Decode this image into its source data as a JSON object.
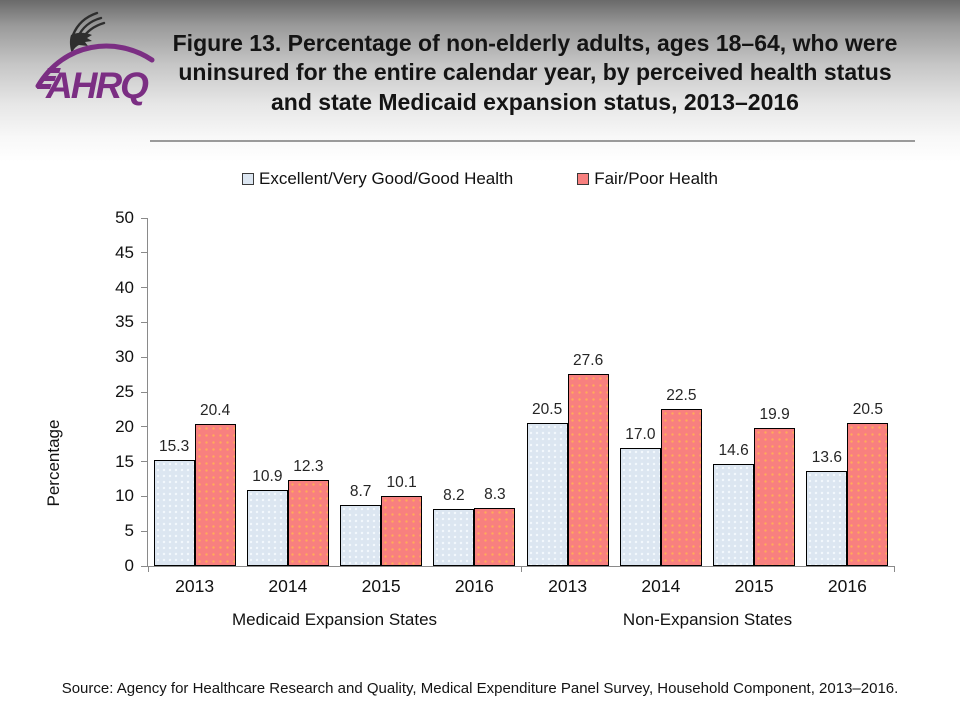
{
  "header": {
    "logo": {
      "org": "AHRQ",
      "eagle_icon": "hhs-eagle-icon",
      "accent_purple": "#7b2e83"
    },
    "title": "Figure 13. Percentage of non-elderly adults, ages 18–64, who were uninsured for the entire calendar year, by perceived health status and state Medicaid expansion status, 2013–2016"
  },
  "chart_data": {
    "type": "bar",
    "title": "Figure 13. Percentage of non-elderly adults, ages 18–64, who were uninsured for the entire calendar year, by perceived health status and state Medicaid expansion status, 2013–2016",
    "ylabel": "Percentage",
    "xlabel": "",
    "ylim": [
      0,
      50
    ],
    "ytick_step": 5,
    "grid": false,
    "legend_position": "top",
    "categories": [
      "2013",
      "2014",
      "2015",
      "2016",
      "2013",
      "2014",
      "2015",
      "2016"
    ],
    "group_labels": [
      "Medicaid Expansion States",
      "Non-Expansion States"
    ],
    "series": [
      {
        "name": "Excellent/Very Good/Good Health",
        "color": "#dce6f1",
        "dot_color": "#f3f8fd",
        "values": [
          15.3,
          10.9,
          8.7,
          8.2,
          20.5,
          17.0,
          14.6,
          13.6
        ]
      },
      {
        "name": "Fair/Poor Health",
        "color": "#f8807f",
        "dot_color": "#ffaa5a",
        "values": [
          20.4,
          12.3,
          10.1,
          8.3,
          27.6,
          22.5,
          19.9,
          20.5
        ]
      }
    ]
  },
  "footer": {
    "source": "Source: Agency for Healthcare Research and Quality, Medical Expenditure Panel Survey, Household Component, 2013–2016."
  },
  "colors": {
    "axis": "#8a8a8a",
    "bar_border": "#000000",
    "title_text": "#141414"
  }
}
